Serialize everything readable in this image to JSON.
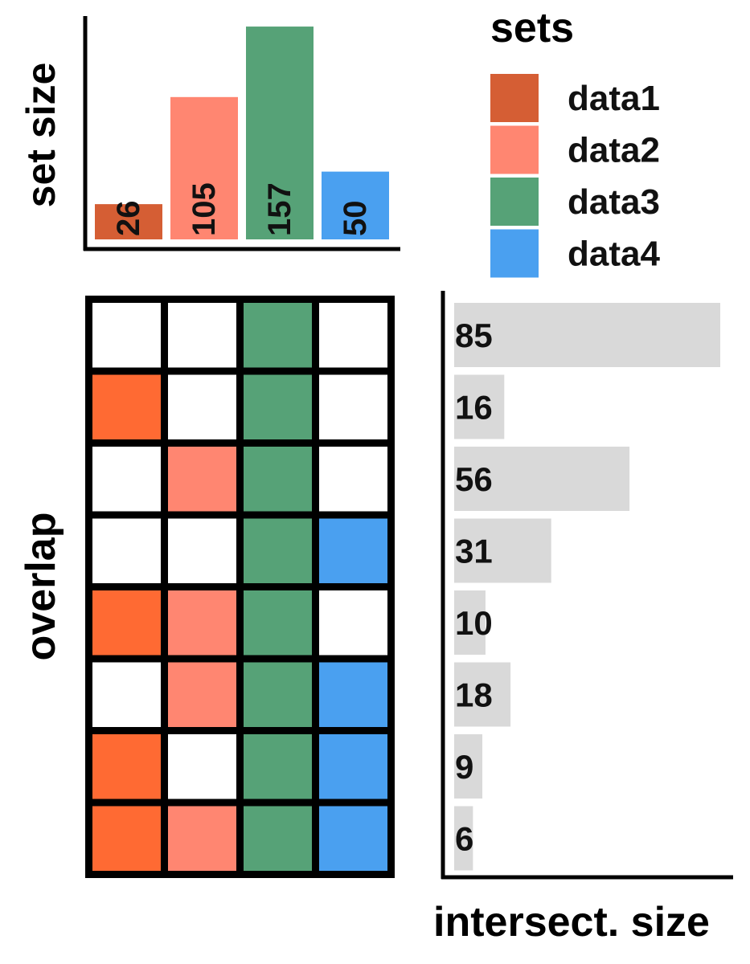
{
  "chart_data": {
    "type": "upset",
    "set_size_label": "set size",
    "overlap_label": "overlap",
    "intersect_label": "intersect. size",
    "legend_title": "sets",
    "legend_position": "top-right",
    "sets": [
      {
        "name": "data1",
        "size": 26,
        "color": "#D55E34",
        "matrix_color": "#FF6A33"
      },
      {
        "name": "data2",
        "size": 105,
        "color": "#FF8671"
      },
      {
        "name": "data3",
        "size": 157,
        "color": "#56A277"
      },
      {
        "name": "data4",
        "size": 50,
        "color": "#4AA0F0"
      }
    ],
    "set_size_max": 160,
    "intersections": [
      {
        "members": [
          0,
          0,
          1,
          0
        ],
        "size": 85
      },
      {
        "members": [
          1,
          0,
          1,
          0
        ],
        "size": 16
      },
      {
        "members": [
          0,
          1,
          1,
          0
        ],
        "size": 56
      },
      {
        "members": [
          0,
          0,
          1,
          1
        ],
        "size": 31
      },
      {
        "members": [
          1,
          1,
          1,
          0
        ],
        "size": 10
      },
      {
        "members": [
          0,
          1,
          1,
          1
        ],
        "size": 18
      },
      {
        "members": [
          1,
          0,
          1,
          1
        ],
        "size": 9
      },
      {
        "members": [
          1,
          1,
          1,
          1
        ],
        "size": 6
      }
    ],
    "intersect_max": 85,
    "intersect_bar_color": "#D9D9D9",
    "grid": false
  }
}
